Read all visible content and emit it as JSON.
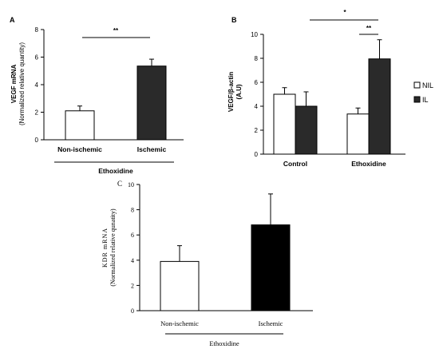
{
  "panels": {
    "A": {
      "letter": "A",
      "ylabel_line1": "VEGF mRNA",
      "ylabel_line2": "(Normalized relative quantity)",
      "group_label": "Ethoxidine",
      "significance": "**",
      "colors": {
        "Non-ischemic": "#ffffff",
        "Ischemic": "#2a2a2a"
      }
    },
    "B": {
      "letter": "B",
      "ylabel_line1": "VEGF/β-actin",
      "ylabel_line2": "(A.U)",
      "significance_top": "*",
      "significance_inner": "**",
      "legend": [
        {
          "label": "NIL",
          "color": "#ffffff"
        },
        {
          "label": "IL",
          "color": "#2a2a2a"
        }
      ]
    },
    "C": {
      "letter": "C",
      "ylabel_line1": "KDR mRNA",
      "ylabel_line2": "(Normalized relative qunatity)",
      "group_label": "Ethoxidine",
      "colors": {
        "Non-ischemic": "#ffffff",
        "Ischemic": "#000000"
      }
    }
  },
  "chart_data": [
    {
      "type": "bar",
      "title": "",
      "ylabel": "VEGF mRNA (Normalized relative quantity)",
      "xlabel": "Ethoxidine",
      "categories": [
        "Non-ischemic",
        "Ischemic"
      ],
      "values": [
        2.1,
        5.35
      ],
      "errors": [
        0.35,
        0.5
      ],
      "ylim": [
        0,
        8
      ],
      "yticks": [
        0,
        2,
        4,
        6,
        8
      ],
      "significance": "**"
    },
    {
      "type": "bar",
      "title": "",
      "ylabel": "VEGF/β-actin (A.U)",
      "categories": [
        "Control",
        "Ethoxidine"
      ],
      "series": [
        {
          "name": "NIL",
          "values": [
            5.0,
            3.35
          ],
          "errors": [
            0.55,
            0.5
          ]
        },
        {
          "name": "IL",
          "values": [
            4.0,
            7.95
          ],
          "errors": [
            1.2,
            1.6
          ]
        }
      ],
      "ylim": [
        0,
        10
      ],
      "yticks": [
        0,
        2,
        4,
        6,
        8,
        10
      ],
      "legend": "right"
    },
    {
      "type": "bar",
      "title": "",
      "ylabel": "KDR mRNA (Normalized relative qunatity)",
      "xlabel": "Ethoxidine",
      "categories": [
        "Non-ischemic",
        "Ischemic"
      ],
      "values": [
        3.9,
        6.8
      ],
      "errors": [
        1.25,
        2.45
      ],
      "ylim": [
        0,
        10
      ],
      "yticks": [
        0,
        2,
        4,
        6,
        8,
        10
      ]
    }
  ]
}
